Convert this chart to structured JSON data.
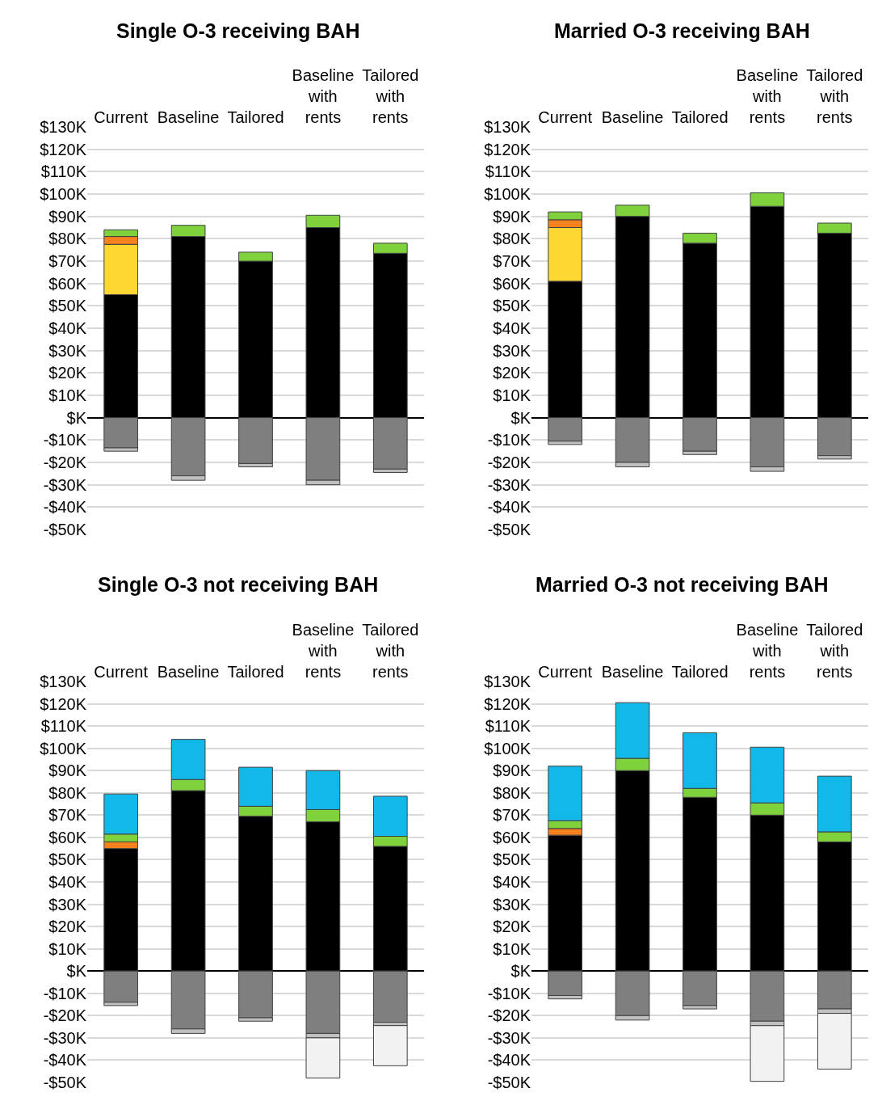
{
  "chart_data": [
    {
      "type": "bar",
      "title": "Single O-3 receiving BAH",
      "stacked": true,
      "grid": "y",
      "categories": [
        "Current",
        "Baseline",
        "Tailored",
        "Baseline with rents",
        "Tailored with rents"
      ],
      "ylim": [
        -50,
        130
      ],
      "yticks": [
        {
          "value": 130,
          "label": "$130K"
        },
        {
          "value": 120,
          "label": "$120K"
        },
        {
          "value": 110,
          "label": "$110K"
        },
        {
          "value": 100,
          "label": "$100K"
        },
        {
          "value": 90,
          "label": "$90K"
        },
        {
          "value": 80,
          "label": "$80K"
        },
        {
          "value": 70,
          "label": "$70K"
        },
        {
          "value": 60,
          "label": "$60K"
        },
        {
          "value": 50,
          "label": "$50K"
        },
        {
          "value": 40,
          "label": "$40K"
        },
        {
          "value": 30,
          "label": "$30K"
        },
        {
          "value": 20,
          "label": "$20K"
        },
        {
          "value": 10,
          "label": "$10K"
        },
        {
          "value": 0,
          "label": "$K"
        },
        {
          "value": -10,
          "label": "-$10K"
        },
        {
          "value": -20,
          "label": "-$20K"
        },
        {
          "value": -30,
          "label": "-$30K"
        },
        {
          "value": -40,
          "label": "-$40K"
        },
        {
          "value": -50,
          "label": "-$50K"
        }
      ],
      "series": [
        {
          "color": "#000000",
          "values": [
            55,
            81,
            70,
            85,
            73.5
          ]
        },
        {
          "color": "#ffd732",
          "values": [
            22.5,
            null,
            null,
            null,
            null
          ]
        },
        {
          "color": "#f5821f",
          "values": [
            3.5,
            null,
            null,
            null,
            null
          ]
        },
        {
          "color": "#7fd23c",
          "values": [
            3,
            5,
            4,
            5.5,
            4.5
          ]
        },
        {
          "color": "#7f7f7f",
          "values": [
            -13.5,
            -26,
            -20.5,
            -28,
            -23
          ]
        },
        {
          "color": "#c0c0c0",
          "values": [
            -1.5,
            -2,
            -1.5,
            -2,
            -1.5
          ]
        }
      ]
    },
    {
      "type": "bar",
      "title": "Married O-3 receiving BAH",
      "stacked": true,
      "grid": "y",
      "categories": [
        "Current",
        "Baseline",
        "Tailored",
        "Baseline with rents",
        "Tailored with rents"
      ],
      "ylim": [
        -50,
        130
      ],
      "yticks": [
        {
          "value": 130,
          "label": "$130K"
        },
        {
          "value": 120,
          "label": "$120K"
        },
        {
          "value": 110,
          "label": "$110K"
        },
        {
          "value": 100,
          "label": "$100K"
        },
        {
          "value": 90,
          "label": "$90K"
        },
        {
          "value": 80,
          "label": "$80K"
        },
        {
          "value": 70,
          "label": "$70K"
        },
        {
          "value": 60,
          "label": "$60K"
        },
        {
          "value": 50,
          "label": "$50K"
        },
        {
          "value": 40,
          "label": "$40K"
        },
        {
          "value": 30,
          "label": "$30K"
        },
        {
          "value": 20,
          "label": "$20K"
        },
        {
          "value": 10,
          "label": "$10K"
        },
        {
          "value": 0,
          "label": "$K"
        },
        {
          "value": -10,
          "label": "-$10K"
        },
        {
          "value": -20,
          "label": "-$20K"
        },
        {
          "value": -30,
          "label": "-$30K"
        },
        {
          "value": -40,
          "label": "-$40K"
        },
        {
          "value": -50,
          "label": "-$50K"
        }
      ],
      "series": [
        {
          "color": "#000000",
          "values": [
            61,
            90,
            78,
            94.5,
            82.5
          ]
        },
        {
          "color": "#ffd732",
          "values": [
            24,
            null,
            null,
            null,
            null
          ]
        },
        {
          "color": "#f5821f",
          "values": [
            3.5,
            null,
            null,
            null,
            null
          ]
        },
        {
          "color": "#7fd23c",
          "values": [
            3.5,
            5,
            4.5,
            6,
            4.5
          ]
        },
        {
          "color": "#7f7f7f",
          "values": [
            -10.5,
            -20,
            -15,
            -22,
            -17
          ]
        },
        {
          "color": "#c0c0c0",
          "values": [
            -1.5,
            -2,
            -1.5,
            -2,
            -1.5
          ]
        }
      ]
    },
    {
      "type": "bar",
      "title": "Single O-3 not receiving BAH",
      "stacked": true,
      "grid": "y",
      "categories": [
        "Current",
        "Baseline",
        "Tailored",
        "Baseline with rents",
        "Tailored with rents"
      ],
      "ylim": [
        -50,
        130
      ],
      "yticks": [
        {
          "value": 130,
          "label": "$130K"
        },
        {
          "value": 120,
          "label": "$120K"
        },
        {
          "value": 110,
          "label": "$110K"
        },
        {
          "value": 100,
          "label": "$100K"
        },
        {
          "value": 90,
          "label": "$90K"
        },
        {
          "value": 80,
          "label": "$80K"
        },
        {
          "value": 70,
          "label": "$70K"
        },
        {
          "value": 60,
          "label": "$60K"
        },
        {
          "value": 50,
          "label": "$50K"
        },
        {
          "value": 40,
          "label": "$40K"
        },
        {
          "value": 30,
          "label": "$30K"
        },
        {
          "value": 20,
          "label": "$20K"
        },
        {
          "value": 10,
          "label": "$10K"
        },
        {
          "value": 0,
          "label": "$K"
        },
        {
          "value": -10,
          "label": "-$10K"
        },
        {
          "value": -20,
          "label": "-$20K"
        },
        {
          "value": -30,
          "label": "-$30K"
        },
        {
          "value": -40,
          "label": "-$40K"
        },
        {
          "value": -50,
          "label": "-$50K"
        }
      ],
      "series": [
        {
          "color": "#000000",
          "values": [
            55,
            81,
            69.5,
            67,
            56
          ]
        },
        {
          "color": "#f5821f",
          "values": [
            3,
            null,
            null,
            null,
            null
          ]
        },
        {
          "color": "#7fd23c",
          "values": [
            3.5,
            5,
            4.5,
            5.5,
            4.5
          ]
        },
        {
          "color": "#12b8e8",
          "values": [
            18,
            18,
            17.5,
            17.5,
            18
          ]
        },
        {
          "color": "#7f7f7f",
          "values": [
            -14,
            -26,
            -21,
            -28,
            -23
          ]
        },
        {
          "color": "#c0c0c0",
          "values": [
            -1.5,
            -2,
            -1.5,
            -2,
            -1.5
          ]
        },
        {
          "color": "#f2f2f2",
          "values": [
            null,
            null,
            null,
            -18,
            -18
          ]
        }
      ]
    },
    {
      "type": "bar",
      "title": "Married O-3 not receiving BAH",
      "stacked": true,
      "grid": "y",
      "categories": [
        "Current",
        "Baseline",
        "Tailored",
        "Baseline with rents",
        "Tailored with rents"
      ],
      "ylim": [
        -50,
        130
      ],
      "yticks": [
        {
          "value": 130,
          "label": "$130K"
        },
        {
          "value": 120,
          "label": "$120K"
        },
        {
          "value": 110,
          "label": "$110K"
        },
        {
          "value": 100,
          "label": "$100K"
        },
        {
          "value": 90,
          "label": "$90K"
        },
        {
          "value": 80,
          "label": "$80K"
        },
        {
          "value": 70,
          "label": "$70K"
        },
        {
          "value": 60,
          "label": "$60K"
        },
        {
          "value": 50,
          "label": "$50K"
        },
        {
          "value": 40,
          "label": "$40K"
        },
        {
          "value": 30,
          "label": "$30K"
        },
        {
          "value": 20,
          "label": "$20K"
        },
        {
          "value": 10,
          "label": "$10K"
        },
        {
          "value": 0,
          "label": "$K"
        },
        {
          "value": -10,
          "label": "-$10K"
        },
        {
          "value": -20,
          "label": "-$20K"
        },
        {
          "value": -30,
          "label": "-$30K"
        },
        {
          "value": -40,
          "label": "-$40K"
        },
        {
          "value": -50,
          "label": "-$50K"
        }
      ],
      "series": [
        {
          "color": "#000000",
          "values": [
            61,
            90,
            78,
            70,
            58
          ]
        },
        {
          "color": "#f5821f",
          "values": [
            3,
            null,
            null,
            null,
            null
          ]
        },
        {
          "color": "#7fd23c",
          "values": [
            3.5,
            5.5,
            4,
            5.5,
            4.5
          ]
        },
        {
          "color": "#12b8e8",
          "values": [
            24.5,
            25,
            25,
            25,
            25
          ]
        },
        {
          "color": "#7f7f7f",
          "values": [
            -11,
            -20,
            -15.5,
            -22.5,
            -17
          ]
        },
        {
          "color": "#c0c0c0",
          "values": [
            -1.5,
            -2,
            -1.5,
            -2,
            -2
          ]
        },
        {
          "color": "#f2f2f2",
          "values": [
            null,
            null,
            null,
            -25,
            -25
          ]
        }
      ]
    }
  ]
}
